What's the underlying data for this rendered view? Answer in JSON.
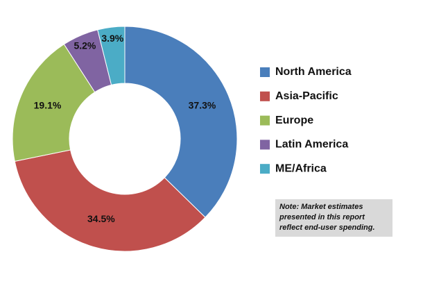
{
  "chart_data": {
    "type": "donut",
    "categories": [
      "North America",
      "Asia-Pacific",
      "Europe",
      "Latin America",
      "ME/Africa"
    ],
    "values": [
      37.3,
      34.5,
      19.1,
      5.2,
      3.9
    ],
    "value_labels": [
      "37.3%",
      "34.5%",
      "19.1%",
      "5.2%",
      "3.9%"
    ],
    "colors": [
      "#4a7ebb",
      "#c0504d",
      "#9bbb59",
      "#8064a2",
      "#4bacc6"
    ],
    "note": [
      "Note: Market estimates",
      "presented in this report",
      "reflect end-user spending."
    ]
  }
}
